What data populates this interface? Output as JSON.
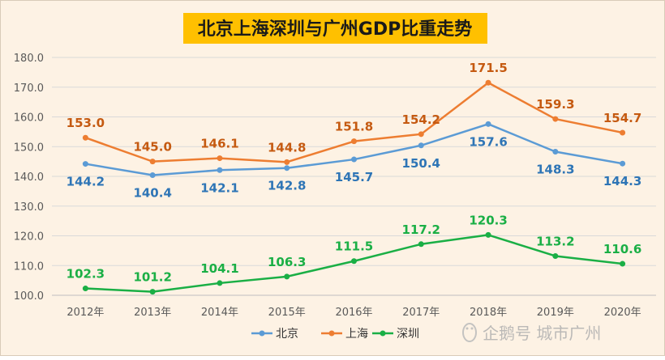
{
  "chart_data": {
    "type": "line",
    "title": "北京上海深圳与广州GDP比重走势",
    "xlabel": "",
    "ylabel": "",
    "ylim": [
      100.0,
      180.0
    ],
    "yticks": [
      "100.0",
      "110.0",
      "120.0",
      "130.0",
      "140.0",
      "150.0",
      "160.0",
      "170.0",
      "180.0"
    ],
    "categories": [
      "2012年",
      "2013年",
      "2014年",
      "2015年",
      "2016年",
      "2017年",
      "2018年",
      "2019年",
      "2020年"
    ],
    "grid": true,
    "legend": "bottom",
    "series": [
      {
        "name": "北京",
        "color": "#5b9bd5",
        "label_color": "#2e75b6",
        "label_pos": "below",
        "values": [
          144.2,
          140.4,
          142.1,
          142.8,
          145.7,
          150.4,
          157.6,
          148.3,
          144.3
        ],
        "labels": [
          "144.2",
          "140.4",
          "142.1",
          "142.8",
          "145.7",
          "150.4",
          "157.6",
          "148.3",
          "144.3"
        ]
      },
      {
        "name": "上海",
        "color": "#ed7d31",
        "label_color": "#c55a11",
        "label_pos": "above",
        "values": [
          153.0,
          145.0,
          146.1,
          144.8,
          151.8,
          154.2,
          171.5,
          159.3,
          154.7
        ],
        "labels": [
          "153.0",
          "145.0",
          "146.1",
          "144.8",
          "151.8",
          "154.2",
          "171.5",
          "159.3",
          "154.7"
        ]
      },
      {
        "name": "深圳",
        "color": "#1aaf45",
        "label_color": "#1aaf45",
        "label_pos": "above",
        "values": [
          102.3,
          101.2,
          104.1,
          106.3,
          111.5,
          117.2,
          120.3,
          113.2,
          110.6
        ],
        "labels": [
          "102.3",
          "101.2",
          "104.1",
          "106.3",
          "111.5",
          "117.2",
          "120.3",
          "113.2",
          "110.6"
        ]
      }
    ]
  },
  "watermark": "企鹅号 城市广州",
  "colors": {
    "background": "#fdf2e4",
    "title_bg": "#ffc000",
    "grid": "#d9d9d9",
    "axis_text": "#595959"
  }
}
